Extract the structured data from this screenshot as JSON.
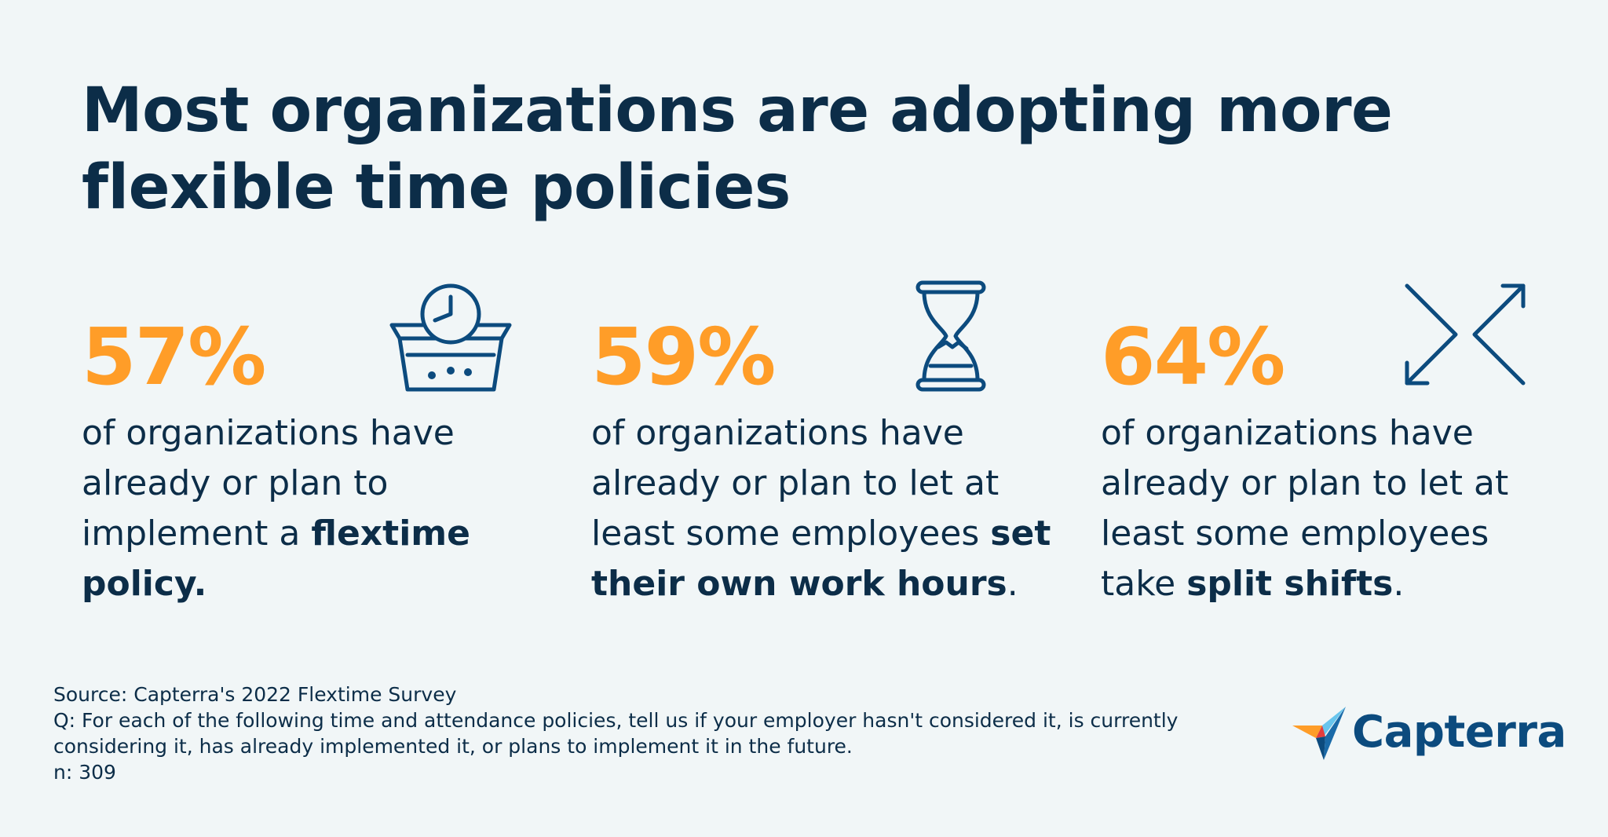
{
  "title": "Most organizations are adopting more flexible time policies",
  "stats": [
    {
      "percent": "57%",
      "icon": "clock-in-tray-icon",
      "text_before": "of organizations have already or plan to implement a ",
      "text_bold": "flextime policy.",
      "text_after": ""
    },
    {
      "percent": "59%",
      "icon": "hourglass-icon",
      "text_before": "of organizations have already or plan to let at least some employees ",
      "text_bold": "set their own work hours",
      "text_after": "."
    },
    {
      "percent": "64%",
      "icon": "crossing-arrows-icon",
      "text_before": "of organizations have already or plan to let at least some employees take ",
      "text_bold": "split shifts",
      "text_after": "."
    }
  ],
  "footer": {
    "source": "Source: Capterra's 2022 Flextime Survey",
    "question": "Q: For each of the following time and attendance policies, tell us if your employer hasn't considered it, is currently considering it, has already implemented it, or plans to implement it in the future.",
    "n": "n: 309"
  },
  "logo": {
    "text": "Capterra",
    "icon": "capterra-logo-icon"
  },
  "colors": {
    "background": "#f1f6f7",
    "navy": "#0c2d48",
    "orange": "#ff9d28",
    "icon_blue": "#0c4b7e"
  }
}
